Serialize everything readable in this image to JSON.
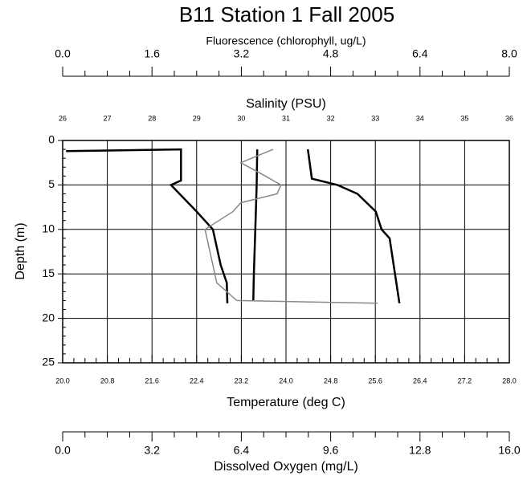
{
  "chart_data": {
    "type": "line",
    "title": "B11 Station 1 Fall 2005",
    "ylabel": "Depth (m)",
    "ylim": [
      0,
      25
    ],
    "yticks": [
      0,
      5,
      10,
      15,
      20,
      25
    ],
    "grid": true,
    "axes": [
      {
        "label": "Fluorescence (chlorophyll, ug/L)",
        "position": "top",
        "lim": [
          0,
          8
        ],
        "ticks": [
          {
            "value": 0,
            "label": "0.0"
          },
          1.6,
          3.2,
          4.8,
          6.4,
          {
            "value": 8,
            "label": "8.0"
          }
        ]
      },
      {
        "label": "Salinity (PSU)",
        "position": "top",
        "lim": [
          26,
          36
        ],
        "ticks": [
          26,
          27,
          28,
          29,
          30,
          31,
          32,
          33,
          34,
          35,
          36
        ]
      },
      {
        "label": "Temperature (deg C)",
        "position": "bottom",
        "lim": [
          20,
          28
        ],
        "ticks": [
          {
            "value": 20,
            "label": "20.0"
          },
          20.8,
          21.6,
          22.4,
          23.2,
          {
            "value": 24,
            "label": "24.0"
          },
          24.8,
          25.6,
          26.4,
          27.2,
          {
            "value": 28,
            "label": "28.0"
          }
        ]
      },
      {
        "label": "Dissolved Oxygen (mg/L)",
        "position": "bottom",
        "lim": [
          0,
          16
        ],
        "ticks": [
          {
            "value": 0,
            "label": "0.0"
          },
          3.2,
          6.4,
          9.6,
          12.8,
          {
            "value": 16,
            "label": "16.0"
          }
        ]
      }
    ],
    "series": [
      {
        "axis": 2,
        "color": "#000000",
        "depth": [
          1.2,
          1.0,
          4.5,
          5.0,
          8,
          10,
          14,
          16,
          18.3
        ],
        "values": [
          20.06,
          22.12,
          22.12,
          21.94,
          22.4,
          22.69,
          22.83,
          22.94,
          22.95
        ]
      },
      {
        "axis": 3,
        "color": "#000000",
        "depth": [
          1.0,
          5,
          10,
          15,
          18.0
        ],
        "values": [
          6.97,
          6.95,
          6.9,
          6.85,
          6.83
        ]
      },
      {
        "axis": 1,
        "color": "#000000",
        "depth": [
          1.0,
          4.3,
          5,
          6,
          8,
          10,
          11,
          14,
          18.3
        ],
        "values": [
          31.49,
          31.58,
          32.15,
          32.6,
          33.01,
          33.14,
          33.32,
          33.41,
          33.54
        ]
      },
      {
        "axis": 0,
        "color": "#888888",
        "depth": [
          1.0,
          2.5,
          4,
          5,
          6,
          7,
          8,
          10,
          12,
          14,
          16,
          18,
          18.3
        ],
        "values": [
          3.77,
          3.19,
          3.63,
          3.91,
          3.84,
          3.19,
          3.05,
          2.55,
          2.62,
          2.69,
          2.76,
          3.12,
          5.64
        ]
      }
    ]
  }
}
